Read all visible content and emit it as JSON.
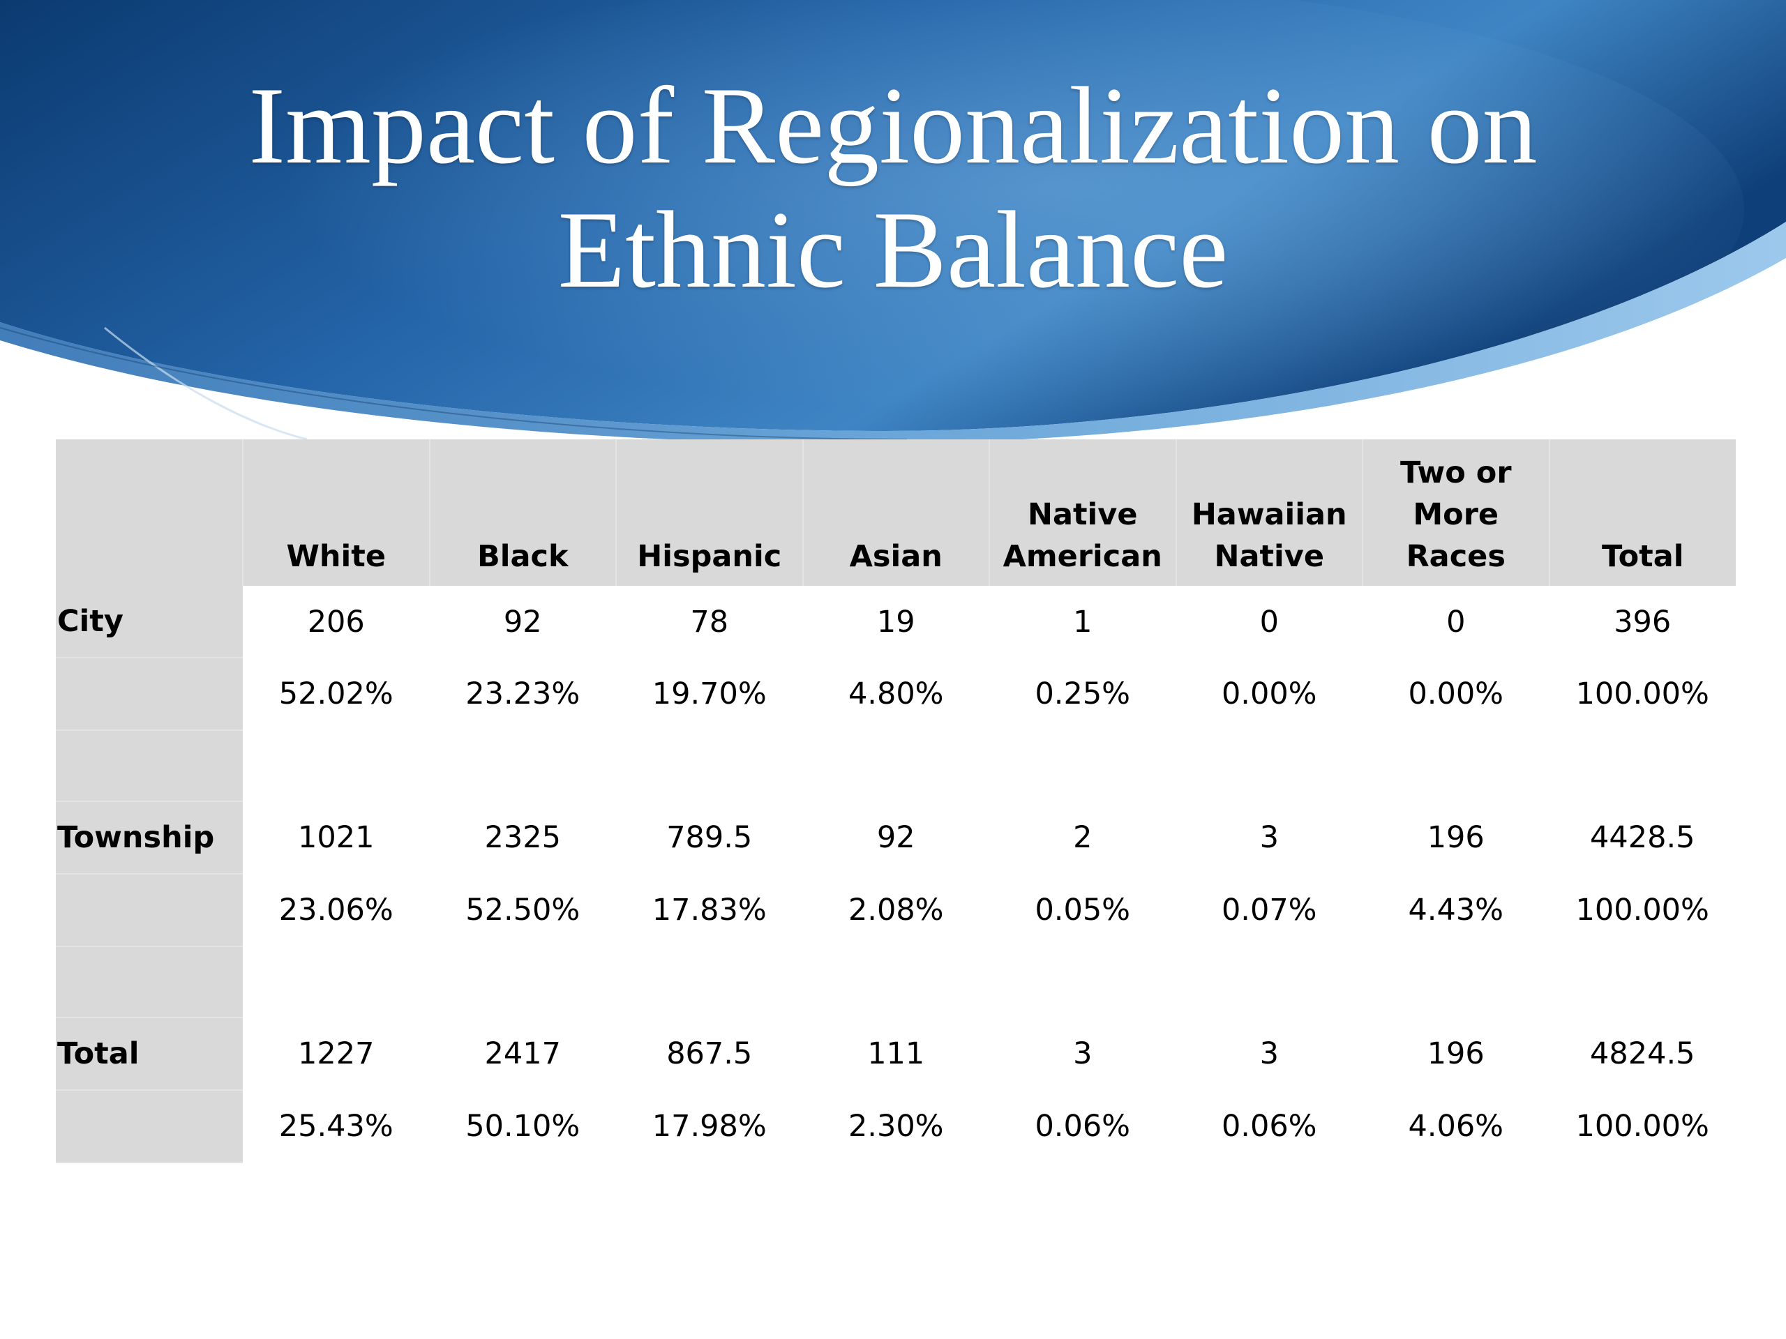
{
  "slide": {
    "title_line1": "Impact of Regionalization on",
    "title_line2": "Ethnic Balance"
  },
  "colors": {
    "header_dark": "#0d3f78",
    "header_mid": "#2a6bb0",
    "header_light": "#7db5e0",
    "table_shade": "#d9d9d9"
  },
  "table": {
    "columns": [
      {
        "line1": "",
        "line2": "White"
      },
      {
        "line1": "",
        "line2": "Black"
      },
      {
        "line1": "",
        "line2": "Hispanic"
      },
      {
        "line1": "",
        "line2": "Asian"
      },
      {
        "line1": "Native",
        "line2": "American"
      },
      {
        "line1": "Hawaiian",
        "line2": "Native"
      },
      {
        "line1": "Two or",
        "line2": "More Races"
      },
      {
        "line1": "",
        "line2": "Total"
      }
    ],
    "groups": [
      {
        "label": "City",
        "counts": [
          "206",
          "92",
          "78",
          "19",
          "1",
          "0",
          "0",
          "396"
        ],
        "percents": [
          "52.02%",
          "23.23%",
          "19.70%",
          "4.80%",
          "0.25%",
          "0.00%",
          "0.00%",
          "100.00%"
        ]
      },
      {
        "label": "Township",
        "counts": [
          "1021",
          "2325",
          "789.5",
          "92",
          "2",
          "3",
          "196",
          "4428.5"
        ],
        "percents": [
          "23.06%",
          "52.50%",
          "17.83%",
          "2.08%",
          "0.05%",
          "0.07%",
          "4.43%",
          "100.00%"
        ]
      },
      {
        "label": "Total",
        "counts": [
          "1227",
          "2417",
          "867.5",
          "111",
          "3",
          "3",
          "196",
          "4824.5"
        ],
        "percents": [
          "25.43%",
          "50.10%",
          "17.98%",
          "2.30%",
          "0.06%",
          "0.06%",
          "4.06%",
          "100.00%"
        ]
      }
    ]
  }
}
